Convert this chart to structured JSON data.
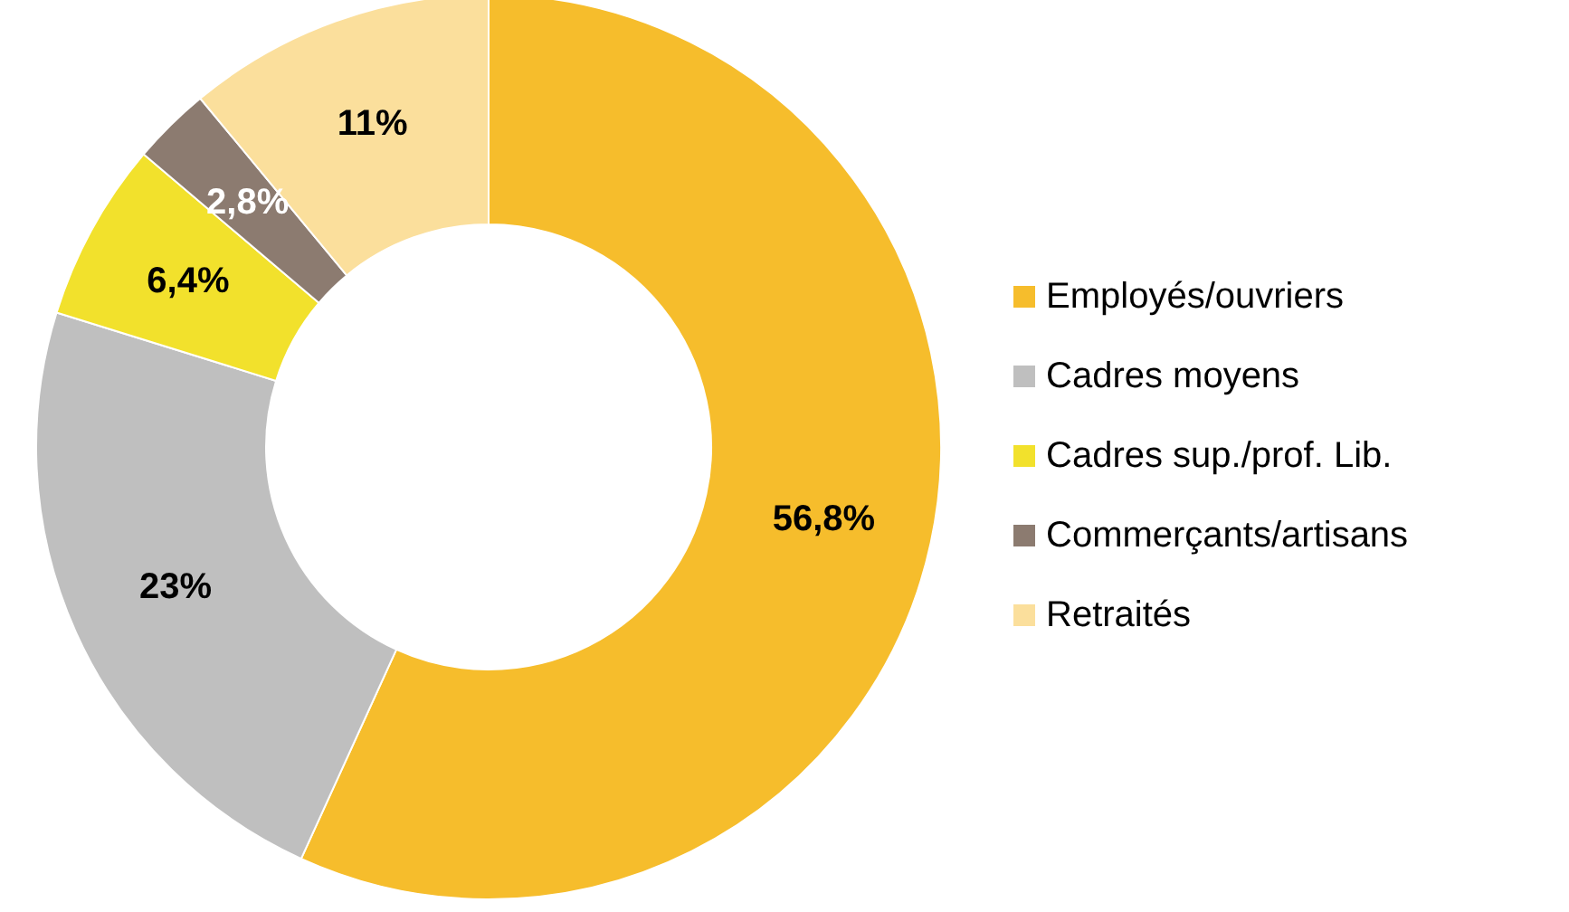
{
  "chart_data": {
    "type": "donut",
    "categories": [
      "Employés/ouvriers",
      "Cadres moyens",
      "Cadres sup./prof. Lib.",
      "Commerçants/artisans",
      "Retraités"
    ],
    "values": [
      56.8,
      23,
      6.4,
      2.8,
      11
    ],
    "colors": [
      "#f6bd2c",
      "#bfbfbf",
      "#f2e12c",
      "#8c7b70",
      "#fbdf9c"
    ],
    "value_labels": [
      "56,8%",
      "23%",
      "6,4%",
      "2,8%",
      "11%"
    ],
    "legend": "right"
  }
}
